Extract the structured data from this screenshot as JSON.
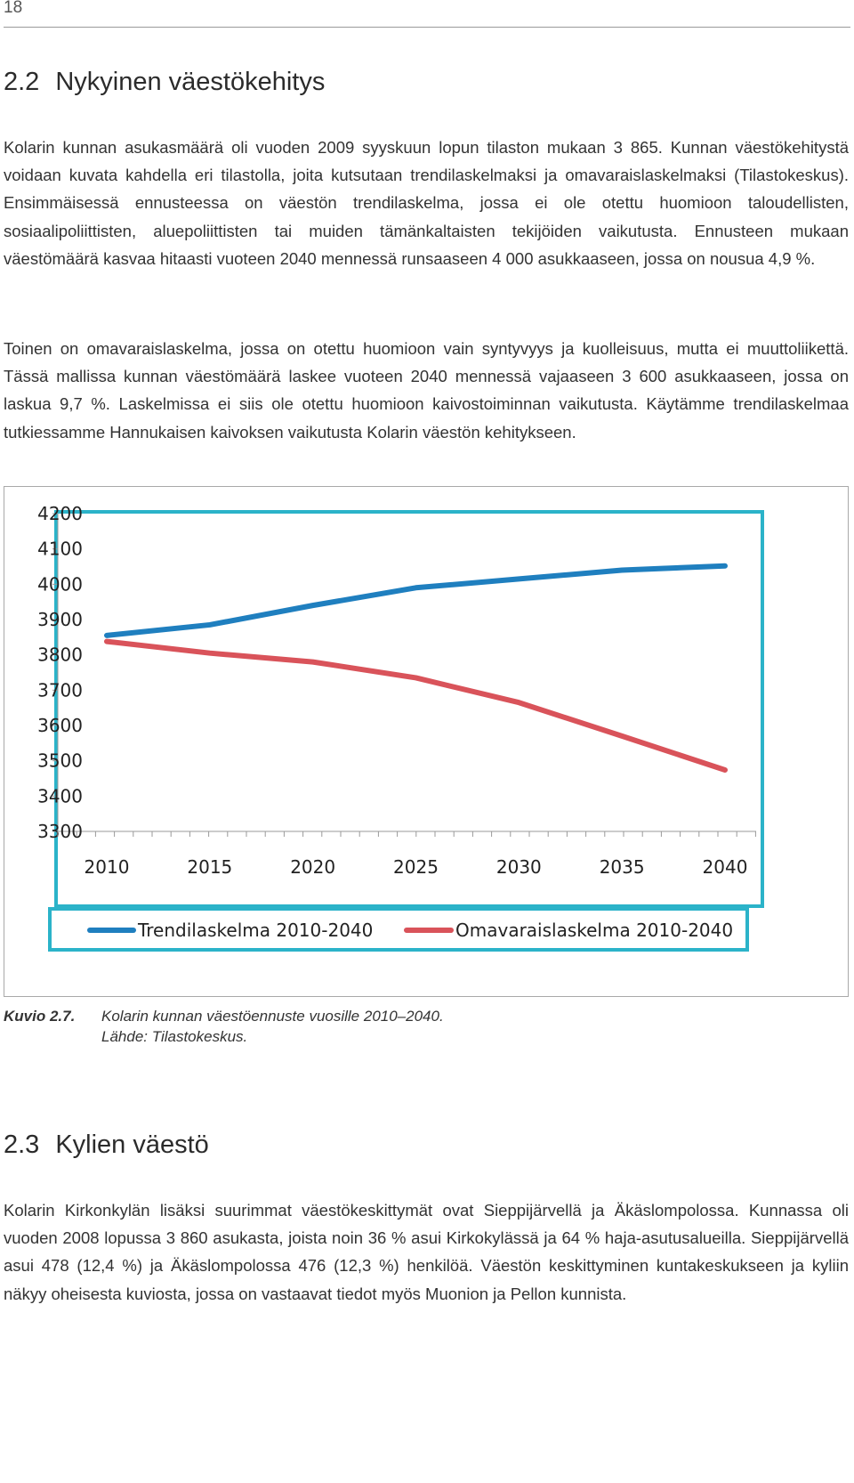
{
  "page_number": "18",
  "section_1": {
    "number": "2.2",
    "title": "Nykyinen väestökehitys",
    "paragraphs": [
      "Kolarin kunnan asukasmäärä oli vuoden 2009 syyskuun lopun tilaston mukaan 3 865. Kunnan väestökehitystä voidaan kuvata kahdella eri tilastolla, joita kutsutaan trendilaskelmaksi ja omavaraislaskelmaksi (Tilastokeskus). Ensimmäisessä ennusteessa on väestön trendilaskelma, jossa ei ole otettu huomioon taloudellisten, sosiaalipoliittisten, aluepoliittisten tai muiden tämänkaltaisten tekijöiden vaikutusta. Ennusteen mukaan väestömäärä kasvaa hitaasti vuoteen 2040 mennessä runsaaseen 4 000 asukkaaseen, jossa on nousua 4,9 %.",
      "Toinen on omavaraislaskelma, jossa on otettu huomioon vain syntyvyys ja kuolleisuus, mutta ei muuttoliikettä. Tässä mallissa kunnan väestömäärä laskee vuoteen 2040 mennessä vajaaseen 3 600 asukkaaseen, jossa on laskua 9,7 %. Laskelmissa ei siis ole otettu huomioon kaivostoiminnan vaikutusta. Käytämme trendilaskelmaa tutkiessamme Hannukaisen kaivoksen vaikutusta Kolarin väestön kehitykseen."
    ]
  },
  "chart_data": {
    "type": "line",
    "title": "",
    "xlabel": "",
    "ylabel": "",
    "x": [
      2010,
      2015,
      2020,
      2025,
      2030,
      2035,
      2040
    ],
    "x_tick_labels": [
      "2010",
      "2015",
      "2020",
      "2025",
      "2030",
      "2035",
      "2040"
    ],
    "y_tick_labels": [
      "4200",
      "4100",
      "4000",
      "3900",
      "3800",
      "3700",
      "3600",
      "3500",
      "3400",
      "3300"
    ],
    "ylim": [
      3300,
      4200
    ],
    "grid": false,
    "legend_position": "bottom",
    "series": [
      {
        "name": "Trendilaskelma 2010-2040",
        "color": "#1f7fbf",
        "values": [
          3855,
          3885,
          3940,
          3990,
          4015,
          4040,
          4052
        ]
      },
      {
        "name": "Omavaraislaskelma 2010-2040",
        "color": "#d9535a",
        "values": [
          3838,
          3805,
          3780,
          3735,
          3665,
          3570,
          3474
        ]
      }
    ],
    "frame_color": "#2bb3c9"
  },
  "caption": {
    "label": "Kuvio 2.7.",
    "line1": "Kolarin kunnan väestöennuste vuosille 2010–2040.",
    "line2": "Lähde: Tilastokeskus."
  },
  "section_2": {
    "number": "2.3",
    "title": "Kylien väestö",
    "paragraphs": [
      "Kolarin Kirkonkylän lisäksi suurimmat väestökeskittymät ovat Sieppijärvellä ja Äkäslompolossa. Kunnassa oli vuoden 2008 lopussa 3 860 asukasta, joista noin 36 % asui Kirkokylässä ja 64 % haja-asutusalueilla. Sieppijärvellä asui 478 (12,4 %) ja Äkäslompolossa 476 (12,3 %) henkilöä. Väestön keskittyminen kuntakeskukseen ja kyliin näkyy oheisesta kuviosta, jossa on vastaavat tiedot myös Muonion ja Pellon kunnista."
    ]
  }
}
